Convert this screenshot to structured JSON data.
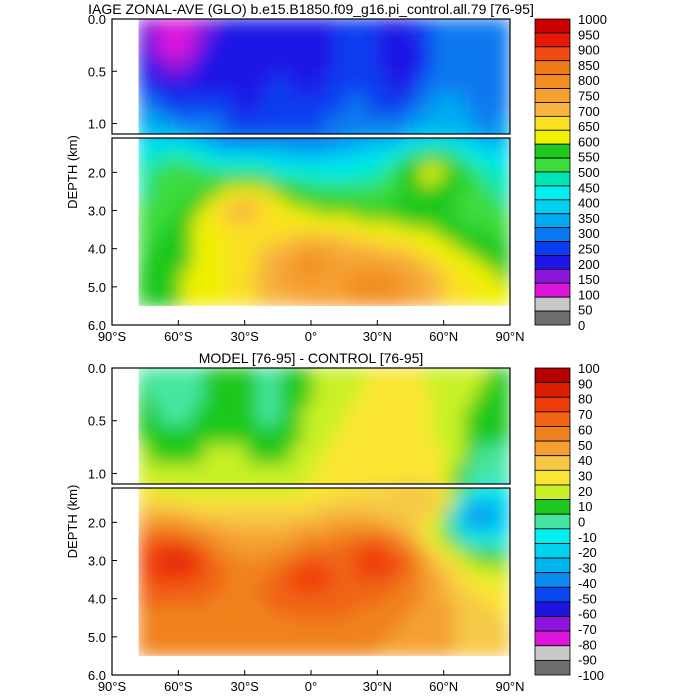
{
  "chart_data": [
    {
      "type": "heatmap",
      "title": "IAGE ZONAL-AVE (GLO) b.e15.B1850.f09_g16.pi_control.all.79 [76-95]",
      "ylabel": "DEPTH (km)",
      "x_ticks": [
        "90°S",
        "60°S",
        "30°S",
        "0°",
        "30°N",
        "60°N",
        "90°N"
      ],
      "y_ticks_upper": [
        "0.0",
        "0.5",
        "1.0"
      ],
      "y_ticks_lower": [
        "2.0",
        "3.0",
        "4.0",
        "5.0",
        "6.0"
      ],
      "xlim": [
        -90,
        90
      ],
      "ylim_km": [
        0,
        6
      ],
      "split_depth_km": 1.1,
      "colorbar_labels": [
        "1000",
        "950",
        "900",
        "850",
        "800",
        "750",
        "700",
        "650",
        "600",
        "550",
        "500",
        "450",
        "400",
        "350",
        "300",
        "250",
        "200",
        "150",
        "100",
        "50",
        "0"
      ],
      "colorbar_colors": [
        "#cc0000",
        "#e61a0a",
        "#f04a14",
        "#f07a14",
        "#f28e20",
        "#f5a030",
        "#f7b440",
        "#fae020",
        "#f0f000",
        "#1ec81e",
        "#3cdc3c",
        "#00e6b4",
        "#00f0f0",
        "#00d2f0",
        "#00aaf0",
        "#0a78f0",
        "#0a3cf0",
        "#1e14e6",
        "#8c14dc",
        "#dc14dc",
        "#c8c8c8",
        "#6e6e6e"
      ],
      "ocean_lat_range": [
        -78,
        90
      ],
      "ocean_depth_range_km": [
        0,
        5.5
      ],
      "field_description_points": [
        {
          "lat": -60,
          "depth": 0.05,
          "value": 50
        },
        {
          "lat": -30,
          "depth": 0.5,
          "value": 150
        },
        {
          "lat": 0,
          "depth": 0.3,
          "value": 150
        },
        {
          "lat": 40,
          "depth": 0.4,
          "value": 150
        },
        {
          "lat": -60,
          "depth": 2.0,
          "value": 500
        },
        {
          "lat": -30,
          "depth": 3.0,
          "value": 700
        },
        {
          "lat": 0,
          "depth": 4.5,
          "value": 780
        },
        {
          "lat": 30,
          "depth": 5.0,
          "value": 800
        },
        {
          "lat": 55,
          "depth": 2.0,
          "value": 600
        },
        {
          "lat": 80,
          "depth": 0.6,
          "value": 250
        }
      ]
    },
    {
      "type": "heatmap",
      "title": "MODEL [76-95] - CONTROL [76-95]",
      "ylabel": "DEPTH (km)",
      "x_ticks": [
        "90°S",
        "60°S",
        "30°S",
        "0°",
        "30°N",
        "60°N",
        "90°N"
      ],
      "y_ticks_upper": [
        "0.0",
        "0.5",
        "1.0"
      ],
      "y_ticks_lower": [
        "2.0",
        "3.0",
        "4.0",
        "5.0",
        "6.0"
      ],
      "xlim": [
        -90,
        90
      ],
      "ylim_km": [
        0,
        6
      ],
      "split_depth_km": 1.1,
      "colorbar_labels": [
        "100",
        "90",
        "80",
        "70",
        "60",
        "50",
        "40",
        "30",
        "20",
        "10",
        "0",
        "-10",
        "-20",
        "-30",
        "-40",
        "-50",
        "-60",
        "-70",
        "-80",
        "-90",
        "-100"
      ],
      "colorbar_colors": [
        "#b40000",
        "#dc1e00",
        "#f03c0a",
        "#f06414",
        "#f0821e",
        "#f5a032",
        "#f7c846",
        "#fae632",
        "#c8f028",
        "#1ec81e",
        "#46e6a0",
        "#00f0f0",
        "#00d2f0",
        "#00b4f0",
        "#0a8cf0",
        "#0a46f0",
        "#1e14dc",
        "#8c14dc",
        "#dc14dc",
        "#c8c8c8",
        "#6e6e6e"
      ],
      "ocean_lat_range": [
        -78,
        90
      ],
      "ocean_depth_range_km": [
        0,
        5.5
      ],
      "field_description_points": [
        {
          "lat": -60,
          "depth": 0.1,
          "value": -10
        },
        {
          "lat": -20,
          "depth": 0.3,
          "value": -5
        },
        {
          "lat": -30,
          "depth": 0.8,
          "value": 10
        },
        {
          "lat": -30,
          "depth": 2.2,
          "value": 40
        },
        {
          "lat": -60,
          "depth": 3.0,
          "value": 85
        },
        {
          "lat": 0,
          "depth": 3.5,
          "value": 75
        },
        {
          "lat": 30,
          "depth": 3.0,
          "value": 80
        },
        {
          "lat": 55,
          "depth": 1.5,
          "value": 40
        },
        {
          "lat": 75,
          "depth": 1.8,
          "value": -50
        }
      ]
    }
  ]
}
